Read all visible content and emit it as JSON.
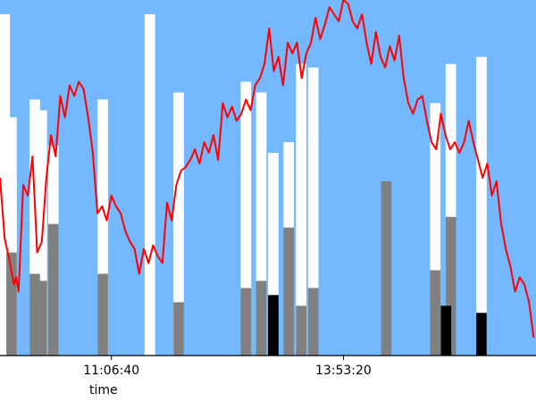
{
  "chart_data": {
    "type": "bar+line",
    "title": "",
    "xlabel": "time",
    "ylabel": "",
    "x_tick_labels": [
      "11:06:40",
      "13:53:20"
    ],
    "x_ticks": [
      40000,
      50000
    ],
    "xlim": [
      35200,
      58300
    ],
    "ylim": [
      0,
      100
    ],
    "grid": false,
    "colors": {
      "background": "#74b9ff",
      "white_bars": "#ffffff",
      "gray_bars": "#808080",
      "black_bars": "#000000",
      "line": "#ff0000",
      "axis": "#000000"
    },
    "bar_width": 450,
    "series": [
      {
        "style": "white_bars",
        "x": [
          35400,
          35700,
          36700,
          37000,
          37500,
          39630,
          41660,
          42900,
          45800,
          46460,
          46980,
          47640,
          48180,
          48700,
          53960,
          54630,
          55950
        ],
        "values": [
          96,
          67,
          72,
          69,
          59,
          72,
          96,
          74,
          77,
          74,
          57,
          60,
          82,
          81,
          71,
          82,
          84
        ]
      },
      {
        "style": "gray_bars",
        "x": [
          35700,
          36700,
          37000,
          37500,
          39630,
          42900,
          45800,
          46460,
          46980,
          47640,
          48180,
          48700,
          51850,
          53960,
          54630
        ],
        "values": [
          29,
          23,
          21,
          37,
          23,
          15,
          19,
          21,
          14,
          36,
          14,
          19,
          49,
          24,
          39
        ]
      },
      {
        "style": "black_bars",
        "x": [
          46980,
          54420,
          55950
        ],
        "values": [
          17,
          14,
          12
        ]
      }
    ],
    "line": {
      "x": [
        35200,
        35400,
        35600,
        35800,
        35900,
        36000,
        36200,
        36400,
        36600,
        36800,
        37000,
        37200,
        37400,
        37600,
        37800,
        38000,
        38200,
        38400,
        38600,
        38800,
        39000,
        39200,
        39400,
        39600,
        39800,
        40000,
        40200,
        40400,
        40600,
        40800,
        41000,
        41200,
        41400,
        41600,
        41800,
        42000,
        42200,
        42400,
        42600,
        42800,
        43000,
        43200,
        43400,
        43600,
        43800,
        44000,
        44200,
        44400,
        44600,
        44800,
        45000,
        45200,
        45400,
        45600,
        45800,
        46000,
        46200,
        46400,
        46600,
        46800,
        47000,
        47200,
        47400,
        47600,
        47800,
        48000,
        48200,
        48400,
        48600,
        48800,
        49000,
        49200,
        49400,
        49600,
        49800,
        50000,
        50200,
        50400,
        50600,
        50800,
        51000,
        51200,
        51400,
        51600,
        51800,
        52000,
        52200,
        52400,
        52600,
        52800,
        53000,
        53200,
        53400,
        53600,
        53800,
        54000,
        54200,
        54400,
        54600,
        54800,
        55000,
        55200,
        55400,
        55600,
        55800,
        56000,
        56200,
        56400,
        56600,
        56800,
        57000,
        57200,
        57400,
        57600,
        57800,
        58000,
        58200
      ],
      "y": [
        50,
        33,
        27,
        20,
        22,
        18,
        48,
        45,
        56,
        29,
        32,
        50,
        62,
        56,
        73,
        67,
        76,
        73,
        77,
        75,
        67,
        57,
        40,
        42,
        38,
        45,
        42,
        40,
        35,
        32,
        30,
        23,
        30,
        26,
        31,
        28,
        26,
        43,
        38,
        48,
        52,
        53,
        55,
        58,
        54,
        60,
        57,
        62,
        55,
        71,
        67,
        70,
        66,
        68,
        72,
        69,
        76,
        78,
        82,
        92,
        80,
        84,
        76,
        88,
        85,
        88,
        78,
        85,
        88,
        95,
        89,
        93,
        98,
        96,
        94,
        100,
        99,
        94,
        92,
        96,
        88,
        82,
        91,
        84,
        81,
        87,
        83,
        90,
        78,
        71,
        68,
        72,
        73,
        66,
        60,
        58,
        68,
        62,
        58,
        60,
        57,
        60,
        66,
        60,
        55,
        50,
        54,
        45,
        49,
        37,
        30,
        25,
        18,
        22,
        20,
        15,
        5
      ]
    }
  }
}
